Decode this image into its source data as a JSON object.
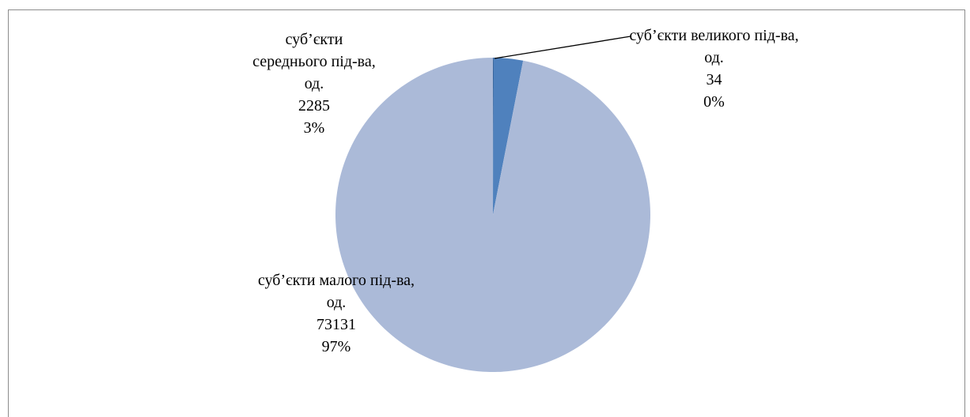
{
  "chart_data": {
    "type": "pie",
    "categories": [
      "суб’єкти великого під-ва, од.",
      "суб’єкти середнього під-ва, од.",
      "суб’єкти малого під-ва, од."
    ],
    "values": [
      34,
      2285,
      73131
    ],
    "percent_labels": [
      "0%",
      "3%",
      "97%"
    ],
    "colors": [
      "#1f497d",
      "#4f81bd",
      "#abbad8"
    ]
  }
}
